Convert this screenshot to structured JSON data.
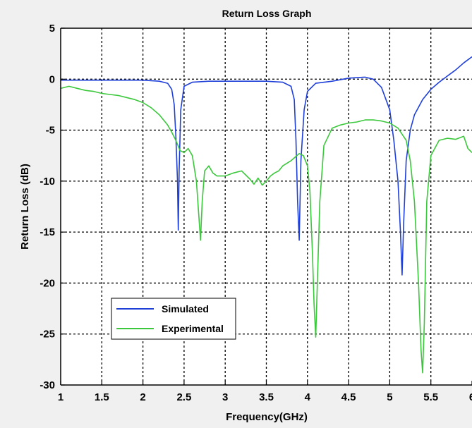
{
  "chart_data": {
    "type": "line",
    "title": "Return Loss Graph",
    "xlabel": "Frequency(GHz)",
    "ylabel": "Return Loss (dB)",
    "xlim": [
      1,
      6
    ],
    "ylim": [
      -30,
      5
    ],
    "xticks": [
      1,
      1.5,
      2,
      2.5,
      3,
      3.5,
      4,
      4.5,
      5,
      5.5,
      6
    ],
    "xtick_labels": [
      "1",
      "1.5",
      "2",
      "2.5",
      "3",
      "3.5",
      "4",
      "4.5",
      "5",
      "5.5",
      "6"
    ],
    "yticks": [
      5,
      0,
      -5,
      -10,
      -15,
      -20,
      -25,
      -30
    ],
    "ytick_labels": [
      "5",
      "0",
      "-5",
      "-10",
      "-15",
      "-20",
      "-25",
      "-30"
    ],
    "grid": true,
    "legend_position": "lower-left",
    "series": [
      {
        "name": "Simulated",
        "color": "#1f3fd9",
        "x": [
          1.0,
          1.5,
          2.0,
          2.2,
          2.3,
          2.35,
          2.38,
          2.4,
          2.42,
          2.43,
          2.44,
          2.46,
          2.5,
          2.6,
          2.8,
          3.0,
          3.5,
          3.7,
          3.8,
          3.84,
          3.86,
          3.88,
          3.9,
          3.92,
          3.96,
          4.0,
          4.1,
          4.3,
          4.5,
          4.7,
          4.8,
          4.9,
          5.0,
          5.05,
          5.1,
          5.13,
          5.15,
          5.17,
          5.2,
          5.25,
          5.3,
          5.4,
          5.5,
          5.6,
          5.7,
          5.8,
          5.9,
          6.0
        ],
        "y": [
          -0.1,
          -0.1,
          -0.1,
          -0.2,
          -0.4,
          -1.0,
          -2.5,
          -5.5,
          -10.0,
          -14.8,
          -9.0,
          -3.0,
          -0.7,
          -0.3,
          -0.2,
          -0.2,
          -0.2,
          -0.3,
          -0.7,
          -2.0,
          -6.0,
          -12.0,
          -15.8,
          -8.0,
          -3.0,
          -1.2,
          -0.4,
          -0.2,
          0.1,
          0.2,
          0.0,
          -0.8,
          -3.0,
          -6.0,
          -10.0,
          -15.0,
          -19.2,
          -14.0,
          -8.0,
          -5.0,
          -3.5,
          -2.0,
          -1.0,
          -0.3,
          0.3,
          0.9,
          1.6,
          2.2
        ]
      },
      {
        "name": "Experimental",
        "color": "#3cc83c",
        "x": [
          1.0,
          1.1,
          1.2,
          1.3,
          1.4,
          1.5,
          1.6,
          1.7,
          1.8,
          1.9,
          2.0,
          2.1,
          2.2,
          2.3,
          2.35,
          2.4,
          2.45,
          2.5,
          2.55,
          2.6,
          2.65,
          2.68,
          2.7,
          2.72,
          2.75,
          2.8,
          2.85,
          2.9,
          3.0,
          3.1,
          3.2,
          3.3,
          3.35,
          3.4,
          3.45,
          3.5,
          3.55,
          3.6,
          3.65,
          3.7,
          3.8,
          3.9,
          3.95,
          4.0,
          4.03,
          4.06,
          4.08,
          4.1,
          4.12,
          4.15,
          4.2,
          4.3,
          4.4,
          4.5,
          4.6,
          4.7,
          4.8,
          4.9,
          5.0,
          5.1,
          5.2,
          5.25,
          5.3,
          5.35,
          5.38,
          5.4,
          5.42,
          5.45,
          5.5,
          5.6,
          5.7,
          5.8,
          5.9,
          5.95,
          6.0
        ],
        "y": [
          -0.9,
          -0.7,
          -0.9,
          -1.1,
          -1.2,
          -1.4,
          -1.5,
          -1.6,
          -1.8,
          -2.0,
          -2.3,
          -2.8,
          -3.5,
          -4.5,
          -5.2,
          -6.0,
          -7.0,
          -7.2,
          -6.8,
          -7.5,
          -10.0,
          -13.5,
          -15.8,
          -12.0,
          -9.0,
          -8.5,
          -9.2,
          -9.5,
          -9.5,
          -9.2,
          -9.0,
          -9.8,
          -10.3,
          -9.7,
          -10.4,
          -10.0,
          -9.5,
          -9.2,
          -9.0,
          -8.5,
          -8.0,
          -7.3,
          -7.5,
          -8.5,
          -11.0,
          -17.0,
          -22.0,
          -25.3,
          -20.0,
          -12.0,
          -6.5,
          -4.8,
          -4.5,
          -4.3,
          -4.2,
          -4.0,
          -4.0,
          -4.1,
          -4.3,
          -4.8,
          -6.0,
          -8.0,
          -12.0,
          -20.0,
          -26.5,
          -28.8,
          -24.0,
          -12.0,
          -7.5,
          -6.0,
          -5.8,
          -5.9,
          -5.6,
          -6.8,
          -7.2
        ]
      }
    ]
  }
}
